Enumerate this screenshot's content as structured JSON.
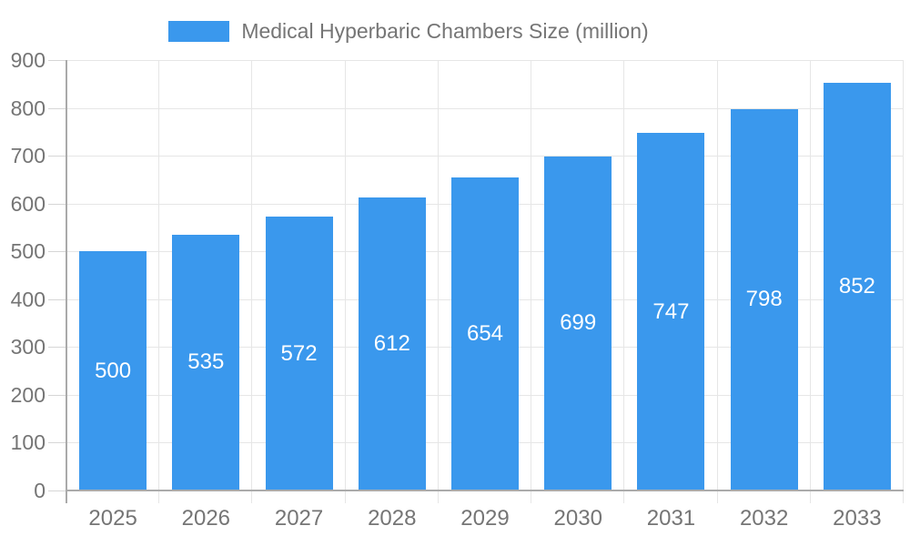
{
  "legend": {
    "label": "Medical Hyperbaric Chambers Size (million)"
  },
  "chart_data": {
    "type": "bar",
    "title": "Medical Hyperbaric Chambers Size (million)",
    "categories": [
      "2025",
      "2026",
      "2027",
      "2028",
      "2029",
      "2030",
      "2031",
      "2032",
      "2033"
    ],
    "values": [
      500,
      535,
      572,
      612,
      654,
      699,
      747,
      798,
      852
    ],
    "xlabel": "",
    "ylabel": "",
    "ylim": [
      0,
      900
    ],
    "yticks": [
      0,
      100,
      200,
      300,
      400,
      500,
      600,
      700,
      800,
      900
    ],
    "grid": true,
    "legend_position": "top",
    "bar_labels_inside": true
  },
  "colors": {
    "bar": "#3a98ed",
    "bar_label": "#ffffff",
    "axis_text": "#757575",
    "grid_line": "#e6e6e6",
    "tick_line": "#d6d6d6",
    "axis_line": "#ababab",
    "background": "#ffffff"
  }
}
